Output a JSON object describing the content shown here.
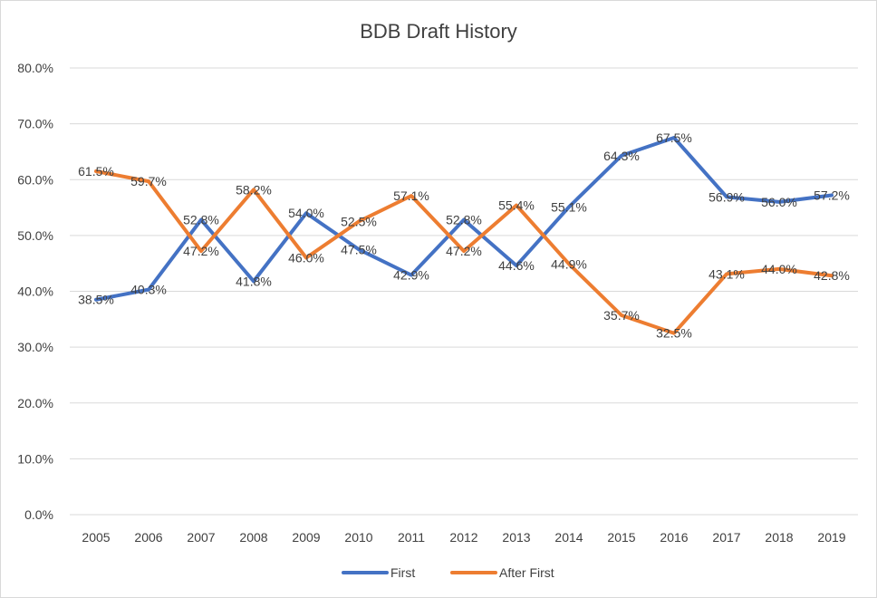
{
  "chart_data": {
    "type": "line",
    "title": "BDB Draft History",
    "xlabel": "",
    "ylabel": "",
    "categories": [
      "2005",
      "2006",
      "2007",
      "2008",
      "2009",
      "2010",
      "2011",
      "2012",
      "2013",
      "2014",
      "2015",
      "2016",
      "2017",
      "2018",
      "2019"
    ],
    "ylim": [
      0,
      80
    ],
    "yticks": [
      "0.0%",
      "10.0%",
      "20.0%",
      "30.0%",
      "40.0%",
      "50.0%",
      "60.0%",
      "70.0%",
      "80.0%"
    ],
    "grid": true,
    "legend_position": "bottom",
    "series": [
      {
        "name": "First",
        "color": "#4472c4",
        "values": [
          38.5,
          40.3,
          52.8,
          41.8,
          54.0,
          47.5,
          42.9,
          52.8,
          44.6,
          55.1,
          64.3,
          67.5,
          56.9,
          56.0,
          57.2
        ],
        "labels": [
          "38.5%",
          "40.3%",
          "52.8%",
          "41.8%",
          "54.0%",
          "47.5%",
          "42.9%",
          "52.8%",
          "44.6%",
          "55.1%",
          "64.3%",
          "67.5%",
          "56.9%",
          "56.0%",
          "57.2%"
        ]
      },
      {
        "name": "After First",
        "color": "#ed7d31",
        "values": [
          61.5,
          59.7,
          47.2,
          58.2,
          46.0,
          52.5,
          57.1,
          47.2,
          55.4,
          44.9,
          35.7,
          32.5,
          43.1,
          44.0,
          42.8
        ],
        "labels": [
          "61.5%",
          "59.7%",
          "47.2%",
          "58.2%",
          "46.0%",
          "52.5%",
          "57.1%",
          "47.2%",
          "55.4%",
          "44.9%",
          "35.7%",
          "32.5%",
          "43.1%",
          "44.0%",
          "42.8%"
        ]
      }
    ]
  }
}
